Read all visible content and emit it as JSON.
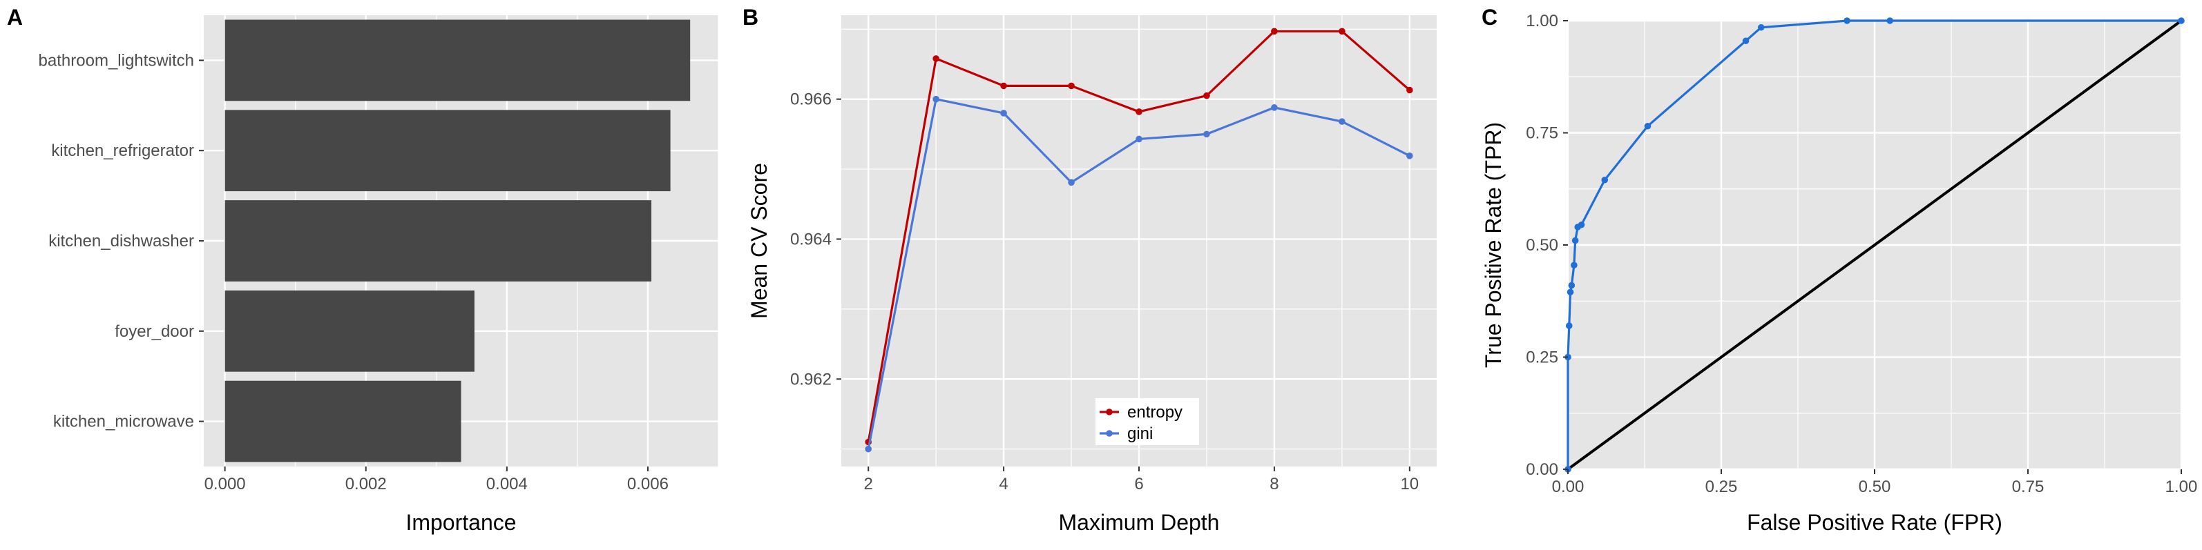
{
  "chart_data": [
    {
      "panel": "A",
      "type": "bar",
      "orientation": "horizontal",
      "categories": [
        "bathroom_lightswitch",
        "kitchen_refrigerator",
        "kitchen_dishwasher",
        "foyer_door",
        "kitchen_microwave"
      ],
      "values": [
        0.0066,
        0.00632,
        0.00605,
        0.00354,
        0.00335
      ],
      "xlabel": "Importance",
      "ylabel": "",
      "xlim": [
        -0.0003,
        0.007
      ],
      "xticks": [
        0.0,
        0.002,
        0.004,
        0.006
      ],
      "xtick_labels": [
        "0.000",
        "0.002",
        "0.004",
        "0.006"
      ],
      "bar_color": "#474747"
    },
    {
      "panel": "B",
      "type": "line",
      "x": [
        2,
        3,
        4,
        5,
        6,
        7,
        8,
        9,
        10
      ],
      "series": [
        {
          "name": "entropy",
          "color": "#c00000",
          "values": [
            0.9611,
            0.96658,
            0.96619,
            0.96619,
            0.96582,
            0.96605,
            0.96697,
            0.96697,
            0.96613
          ]
        },
        {
          "name": "gini",
          "color": "#4a76d6",
          "values": [
            0.961,
            0.966,
            0.9658,
            0.96481,
            0.96543,
            0.9655,
            0.96588,
            0.96568,
            0.96519
          ]
        }
      ],
      "xlabel": "Maximum Depth",
      "ylabel": "Mean CV Score",
      "xlim": [
        1.6,
        10.4
      ],
      "ylim": [
        0.96075,
        0.9672
      ],
      "xticks": [
        2,
        4,
        6,
        8,
        10
      ],
      "xtick_labels": [
        "2",
        "4",
        "6",
        "8",
        "10"
      ],
      "yticks": [
        0.962,
        0.964,
        0.966
      ],
      "ytick_labels": [
        "0.962",
        "0.964",
        "0.966"
      ],
      "legend": "bottom-center"
    },
    {
      "panel": "C",
      "type": "line",
      "series": [
        {
          "name": "ROC",
          "color": "#1f6fd6",
          "x": [
            0.0,
            0.0,
            0.002,
            0.004,
            0.006,
            0.01,
            0.012,
            0.016,
            0.022,
            0.06,
            0.13,
            0.29,
            0.315,
            0.455,
            0.525,
            1.0
          ],
          "y": [
            0.0,
            0.25,
            0.32,
            0.395,
            0.41,
            0.455,
            0.51,
            0.54,
            0.545,
            0.645,
            0.765,
            0.955,
            0.985,
            1.0,
            1.0,
            1.0
          ]
        },
        {
          "name": "diagonal",
          "color": "#000000",
          "x": [
            0,
            1
          ],
          "y": [
            0,
            1
          ]
        }
      ],
      "xlabel": "False Positive Rate (FPR)",
      "ylabel": "True Positive Rate (TPR)",
      "xlim": [
        0,
        1
      ],
      "ylim": [
        0,
        1
      ],
      "xticks": [
        0,
        0.25,
        0.5,
        0.75,
        1.0
      ],
      "xtick_labels": [
        "0.00",
        "0.25",
        "0.50",
        "0.75",
        "1.00"
      ],
      "yticks": [
        0,
        0.25,
        0.5,
        0.75,
        1.0
      ],
      "ytick_labels": [
        "0.00",
        "0.25",
        "0.50",
        "0.75",
        "1.00"
      ]
    }
  ],
  "figure": {
    "panel_labels": [
      "A",
      "B",
      "C"
    ],
    "background": "#ffffff",
    "panel_background": "#e5e5e5",
    "grid_color": "#ffffff"
  }
}
